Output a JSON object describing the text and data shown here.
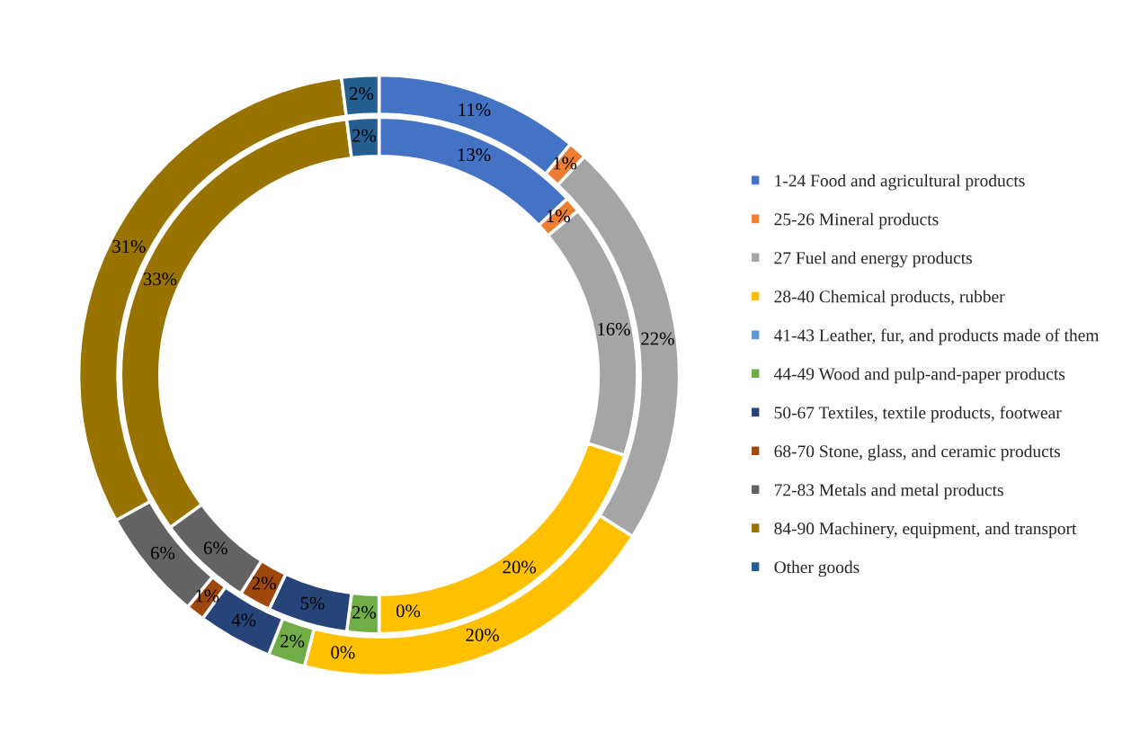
{
  "chart_data": {
    "type": "donut",
    "categories": [
      "1-24 Food and agricultural products",
      "25-26 Mineral products",
      "27 Fuel and energy products",
      "28-40 Chemical products, rubber",
      "41-43 Leather, fur, and products made of them",
      "44-49 Wood and pulp-and-paper products",
      "50-67 Textiles, textile products, footwear",
      "68-70 Stone, glass, and ceramic products",
      "72-83 Metals and metal products",
      "84-90 Machinery, equipment, and transport",
      "Other goods"
    ],
    "colors": [
      "#4472c4",
      "#ed7d31",
      "#a5a5a5",
      "#ffc000",
      "#5b9bd5",
      "#70ad47",
      "#264478",
      "#9e480e",
      "#636363",
      "#997300",
      "#255e91"
    ],
    "series": [
      {
        "values": [
          11,
          1,
          22,
          20,
          0,
          2,
          4,
          1,
          6,
          31,
          2
        ],
        "value_labels": [
          "11%",
          "1%",
          "22%",
          "20%",
          "0%",
          "2%",
          "4%",
          "1%",
          "6%",
          "31%",
          "2%"
        ]
      },
      {
        "values": [
          13,
          1,
          16,
          20,
          0,
          2,
          5,
          2,
          6,
          33,
          2
        ],
        "value_labels": [
          "13%",
          "1%",
          "16%",
          "20%",
          "0%",
          "2%",
          "5%",
          "2%",
          "6%",
          "33%",
          "2%"
        ]
      }
    ],
    "legend": "right"
  }
}
